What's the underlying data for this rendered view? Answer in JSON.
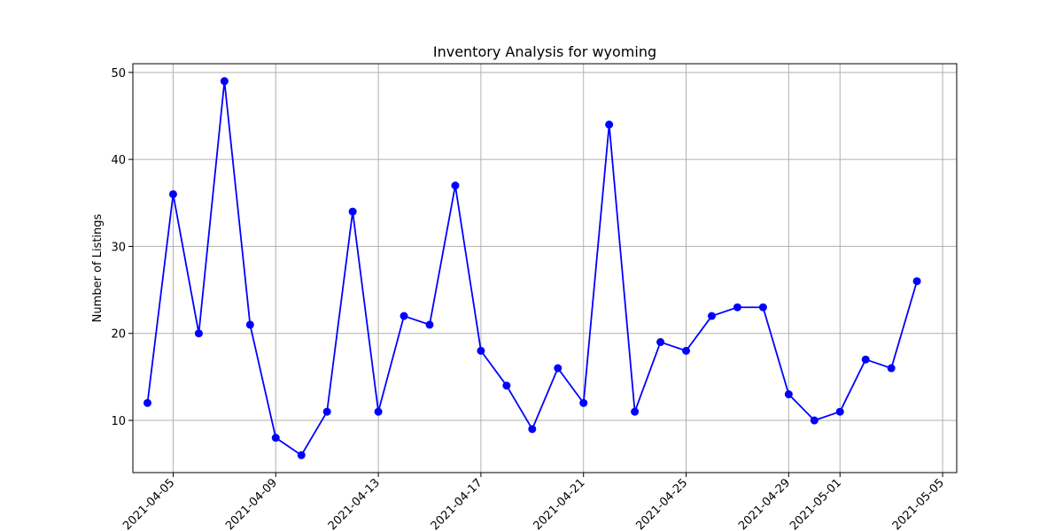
{
  "chart_data": {
    "type": "line",
    "title": "Inventory Analysis for wyoming",
    "xlabel": "",
    "ylabel": "Number of Listings",
    "grid": true,
    "legend": "none",
    "line_color": "#0000ff",
    "marker": "circle",
    "x": [
      "2021-04-04",
      "2021-04-05",
      "2021-04-06",
      "2021-04-07",
      "2021-04-08",
      "2021-04-09",
      "2021-04-10",
      "2021-04-11",
      "2021-04-12",
      "2021-04-13",
      "2021-04-14",
      "2021-04-15",
      "2021-04-16",
      "2021-04-17",
      "2021-04-18",
      "2021-04-19",
      "2021-04-20",
      "2021-04-21",
      "2021-04-22",
      "2021-04-23",
      "2021-04-24",
      "2021-04-25",
      "2021-04-26",
      "2021-04-27",
      "2021-04-28",
      "2021-04-29",
      "2021-04-30",
      "2021-05-01",
      "2021-05-02",
      "2021-05-03",
      "2021-05-04"
    ],
    "values": [
      12,
      36,
      20,
      49,
      21,
      8,
      6,
      11,
      34,
      11,
      22,
      21,
      37,
      18,
      14,
      9,
      16,
      12,
      44,
      11,
      19,
      18,
      22,
      23,
      23,
      13,
      10,
      11,
      17,
      16,
      26
    ],
    "xlim": [
      "2021-04-03",
      "2021-05-05"
    ],
    "ylim": [
      4,
      51
    ],
    "xticks": [
      "2021-04-05",
      "2021-04-09",
      "2021-04-13",
      "2021-04-17",
      "2021-04-21",
      "2021-04-25",
      "2021-04-29",
      "2021-05-01",
      "2021-05-05"
    ],
    "yticks": [
      10,
      20,
      30,
      40,
      50
    ]
  }
}
